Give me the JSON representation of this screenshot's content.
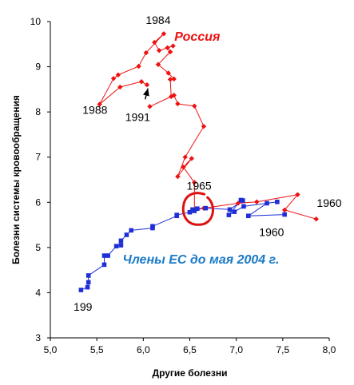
{
  "chart_data": {
    "type": "scatter",
    "xlabel": "Другие болезни",
    "ylabel": "Болезни системы кровообращения",
    "xlim": [
      5.0,
      8.0
    ],
    "ylim": [
      3,
      10
    ],
    "x_ticks": [
      "5,0",
      "5,5",
      "6,0",
      "6,5",
      "7,0",
      "7,5",
      "8,0"
    ],
    "y_ticks": [
      "3",
      "4",
      "5",
      "6",
      "7",
      "8",
      "9",
      "10"
    ],
    "grid": false,
    "series": [
      {
        "name": "Россия",
        "color": "#ee1111",
        "marker": "diamond",
        "points": [
          [
            7.86,
            5.63
          ],
          [
            7.52,
            5.83
          ],
          [
            7.66,
            6.17
          ],
          [
            7.22,
            6.01
          ],
          [
            7.02,
            5.98
          ],
          [
            6.65,
            5.87
          ],
          [
            6.55,
            5.82
          ],
          [
            6.55,
            6.44
          ],
          [
            6.43,
            6.78
          ],
          [
            6.52,
            6.97
          ],
          [
            6.37,
            6.57
          ],
          [
            6.45,
            7.0
          ],
          [
            6.65,
            7.68
          ],
          [
            6.55,
            8.13
          ],
          [
            6.37,
            8.18
          ],
          [
            6.33,
            8.37
          ],
          [
            6.07,
            8.12
          ],
          [
            6.3,
            8.34
          ],
          [
            6.29,
            8.72
          ],
          [
            6.33,
            8.73
          ],
          [
            6.27,
            8.86
          ],
          [
            6.16,
            9.05
          ],
          [
            6.29,
            9.33
          ],
          [
            6.26,
            9.42
          ],
          [
            6.32,
            9.46
          ],
          [
            6.17,
            9.36
          ],
          [
            6.12,
            9.54
          ],
          [
            6.22,
            9.73
          ],
          [
            6.03,
            9.31
          ],
          [
            5.95,
            9.01
          ],
          [
            5.73,
            8.82
          ],
          [
            5.68,
            8.74
          ],
          [
            5.53,
            8.17
          ],
          [
            5.75,
            8.55
          ],
          [
            5.98,
            8.67
          ],
          [
            6.04,
            8.6
          ]
        ]
      },
      {
        "name": "Члены ЕС до мая 2004 г.",
        "color": "#1f2fd6",
        "marker": "square",
        "points": [
          [
            7.52,
            5.73
          ],
          [
            7.13,
            5.7
          ],
          [
            7.33,
            5.98
          ],
          [
            7.44,
            6.01
          ],
          [
            7.08,
            5.91
          ],
          [
            6.98,
            5.79
          ],
          [
            6.92,
            5.72
          ],
          [
            7.05,
            6.05
          ],
          [
            7.07,
            6.04
          ],
          [
            6.93,
            5.84
          ],
          [
            6.67,
            5.87
          ],
          [
            6.58,
            5.86
          ],
          [
            6.53,
            5.84
          ],
          [
            6.55,
            5.81
          ],
          [
            6.5,
            5.78
          ],
          [
            6.36,
            5.72
          ],
          [
            6.36,
            5.7
          ],
          [
            6.1,
            5.47
          ],
          [
            6.1,
            5.43
          ],
          [
            5.87,
            5.38
          ],
          [
            5.82,
            5.28
          ],
          [
            5.76,
            5.15
          ],
          [
            5.76,
            5.05
          ],
          [
            5.71,
            5.03
          ],
          [
            5.62,
            4.82
          ],
          [
            5.58,
            4.82
          ],
          [
            5.58,
            4.62
          ],
          [
            5.41,
            4.38
          ],
          [
            5.41,
            4.23
          ],
          [
            5.4,
            4.12
          ],
          [
            5.33,
            4.06
          ]
        ]
      }
    ],
    "annotations": [
      {
        "text": "1984",
        "x": 6.16,
        "y": 9.95
      },
      {
        "text": "1988",
        "x": 5.48,
        "y": 7.96
      },
      {
        "text": "1991",
        "x": 5.94,
        "y": 7.8
      },
      {
        "text": "1965",
        "x": 6.6,
        "y": 6.28
      },
      {
        "text": "1960",
        "x": 8.0,
        "y": 5.9
      },
      {
        "text": "1960",
        "x": 7.38,
        "y": 5.25
      },
      {
        "text": "199",
        "x": 5.35,
        "y": 3.6
      },
      {
        "text": "Россия",
        "x": 6.58,
        "y": 9.58,
        "style": "series-label",
        "color": "#ee1111"
      },
      {
        "text": "Члены ЕС до мая 2004 г.",
        "x": 6.62,
        "y": 4.64,
        "style": "series-label",
        "color": "#1a7ac8"
      }
    ],
    "highlight_circle": {
      "cx": 6.57,
      "cy": 5.86,
      "color": "#dd1111"
    },
    "arrow": {
      "from": [
        6.02,
        8.28
      ],
      "to": [
        6.05,
        8.52
      ]
    }
  }
}
